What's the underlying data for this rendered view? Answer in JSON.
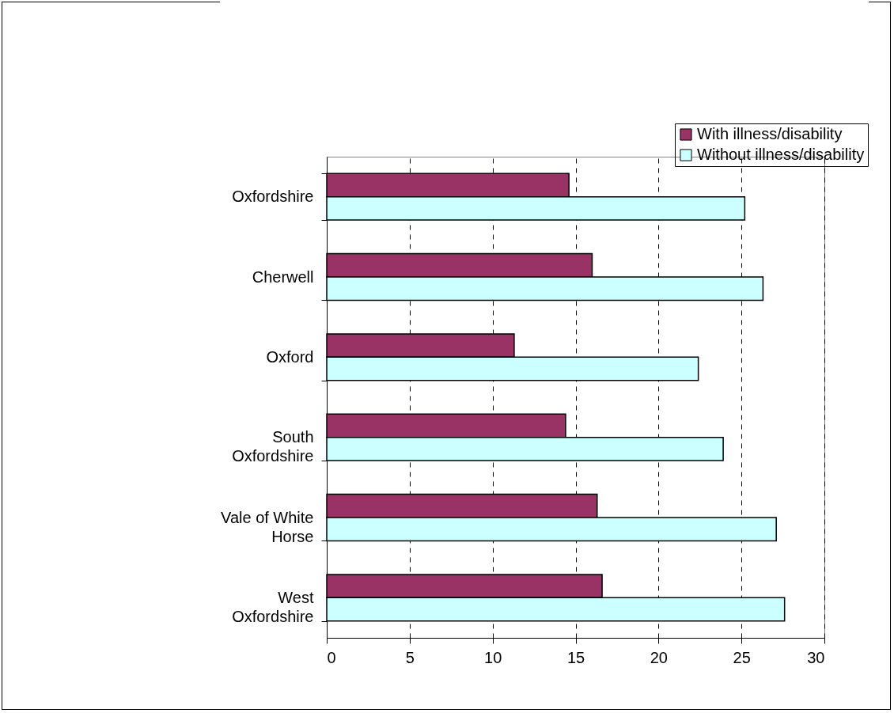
{
  "chart_data": {
    "type": "bar",
    "orientation": "horizontal",
    "categories": [
      "Oxfordshire",
      "Cherwell",
      "Oxford",
      "South Oxfordshire",
      "Vale of White Horse",
      "West Oxfordshire"
    ],
    "series": [
      {
        "name": "With illness/disability",
        "color": "#993366",
        "values": [
          14.6,
          16.0,
          11.3,
          14.4,
          16.3,
          16.6
        ]
      },
      {
        "name": "Without illness/disability",
        "color": "#ccffff",
        "values": [
          25.2,
          26.3,
          22.4,
          23.9,
          27.1,
          27.6
        ]
      }
    ],
    "xlim": [
      0,
      30
    ],
    "xticks": [
      0,
      5,
      10,
      15,
      20,
      25,
      30
    ],
    "grid": "x",
    "legend": "top right"
  }
}
